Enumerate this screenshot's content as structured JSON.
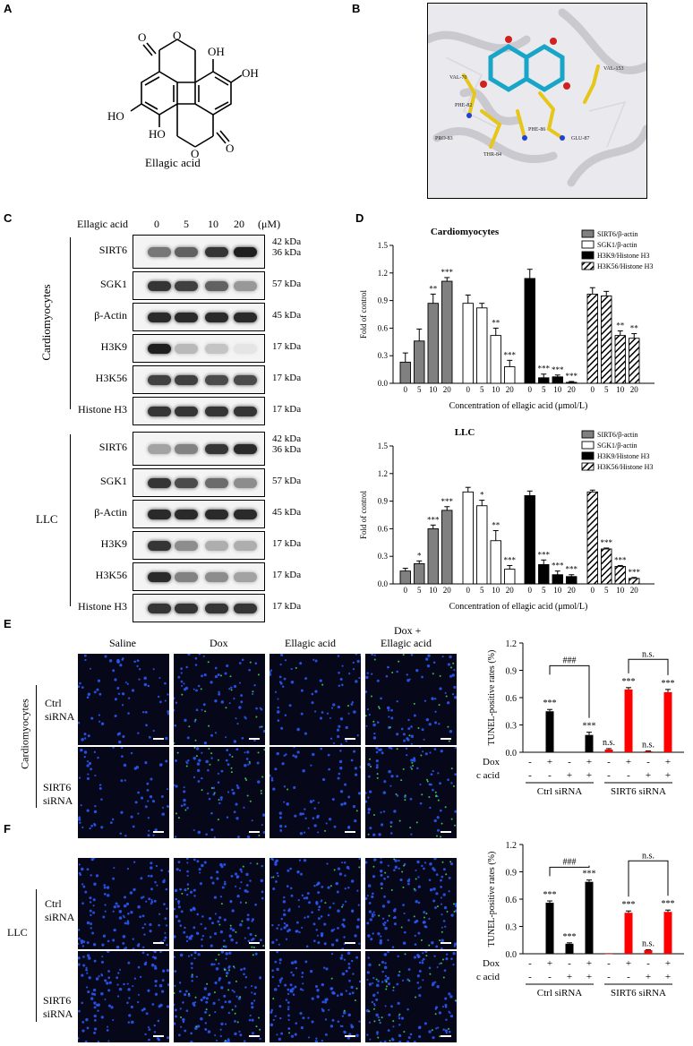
{
  "panels": {
    "A": "A",
    "B": "B",
    "C": "C",
    "D": "D",
    "E": "E",
    "F": "F"
  },
  "panel_a": {
    "molecule_name": "Ellagic acid",
    "oh": "OH",
    "ho": "HO"
  },
  "panel_b": {
    "residues": [
      "VAL-70",
      "PHE-82",
      "PRO-83",
      "THR-84",
      "PHE-86",
      "GLU-87",
      "VAL-153"
    ]
  },
  "panel_c": {
    "treatment_label": "Ellagic acid",
    "doses": [
      "0",
      "5",
      "10",
      "20"
    ],
    "unit": "(μM)",
    "group_labels": [
      "Cardiomyocytes",
      "LLC"
    ],
    "rows": [
      {
        "label": "SIRT6",
        "kda": "42 kDa",
        "kda2": "36 kDa"
      },
      {
        "label": "SGK1",
        "kda": "57 kDa"
      },
      {
        "label": "β-Actin",
        "kda": "45 kDa"
      },
      {
        "label": "H3K9",
        "kda": "17 kDa"
      },
      {
        "label": "H3K56",
        "kda": "17 kDa"
      },
      {
        "label": "Histone H3",
        "kda": "17 kDa"
      }
    ],
    "band_intensity_cardio": [
      [
        0.55,
        0.65,
        0.85,
        0.95
      ],
      [
        0.85,
        0.8,
        0.65,
        0.4
      ],
      [
        0.9,
        0.9,
        0.9,
        0.9
      ],
      [
        0.95,
        0.25,
        0.2,
        0.05
      ],
      [
        0.8,
        0.8,
        0.75,
        0.75
      ],
      [
        0.85,
        0.85,
        0.85,
        0.85
      ]
    ],
    "band_intensity_llc": [
      [
        0.35,
        0.5,
        0.85,
        0.9
      ],
      [
        0.85,
        0.75,
        0.6,
        0.45
      ],
      [
        0.9,
        0.9,
        0.9,
        0.9
      ],
      [
        0.85,
        0.45,
        0.3,
        0.3
      ],
      [
        0.9,
        0.5,
        0.45,
        0.35
      ],
      [
        0.85,
        0.85,
        0.85,
        0.85
      ]
    ]
  },
  "chart_data": [
    {
      "type": "bar",
      "title": "Cardiomyocytes",
      "xlabel": "Concentration of ellagic acid (μmol/L)",
      "ylabel": "Fold of control",
      "ylim": [
        0,
        1.5
      ],
      "yticks": [
        "0.0",
        "0.3",
        "0.6",
        "0.9",
        "1.2",
        "1.5"
      ],
      "categories": [
        "0",
        "5",
        "10",
        "20"
      ],
      "legend_position": "top-right",
      "series": [
        {
          "name": "SIRT6/β-actin",
          "values": [
            0.23,
            0.46,
            0.87,
            1.11
          ],
          "errors": [
            0.1,
            0.13,
            0.1,
            0.04
          ],
          "sig": [
            "",
            "",
            "**",
            "***"
          ]
        },
        {
          "name": "SGK1/β-actin",
          "values": [
            0.87,
            0.82,
            0.52,
            0.18
          ],
          "errors": [
            0.09,
            0.05,
            0.08,
            0.07
          ],
          "sig": [
            "",
            "",
            "**",
            "***"
          ]
        },
        {
          "name": "H3K9/Histone H3",
          "values": [
            1.14,
            0.06,
            0.07,
            0.01
          ],
          "errors": [
            0.1,
            0.04,
            0.02,
            0.01
          ],
          "sig": [
            "",
            "***",
            "***",
            "***"
          ]
        },
        {
          "name": "H3K56/Histone H3",
          "values": [
            0.97,
            0.95,
            0.52,
            0.49
          ],
          "errors": [
            0.07,
            0.05,
            0.05,
            0.05
          ],
          "sig": [
            "",
            "",
            "**",
            "**"
          ]
        }
      ]
    },
    {
      "type": "bar",
      "title": "LLC",
      "xlabel": "Concentration of ellagic acid (μmol/L)",
      "ylabel": "Fold of control",
      "ylim": [
        0,
        1.5
      ],
      "yticks": [
        "0.0",
        "0.3",
        "0.6",
        "0.9",
        "1.2",
        "1.5"
      ],
      "categories": [
        "0",
        "5",
        "10",
        "20"
      ],
      "legend_position": "top-right",
      "series": [
        {
          "name": "SIRT6/β-actin",
          "values": [
            0.14,
            0.22,
            0.6,
            0.8
          ],
          "errors": [
            0.03,
            0.03,
            0.04,
            0.04
          ],
          "sig": [
            "",
            "*",
            "***",
            "***"
          ]
        },
        {
          "name": "SGK1/β-actin",
          "values": [
            1.0,
            0.85,
            0.47,
            0.16
          ],
          "errors": [
            0.05,
            0.06,
            0.11,
            0.04
          ],
          "sig": [
            "",
            "*",
            "**",
            "***"
          ]
        },
        {
          "name": "H3K9/Histone H3",
          "values": [
            0.96,
            0.21,
            0.1,
            0.08
          ],
          "errors": [
            0.05,
            0.05,
            0.04,
            0.02
          ],
          "sig": [
            "",
            "***",
            "***",
            "***"
          ]
        },
        {
          "name": "H3K56/Histone H3",
          "values": [
            1.0,
            0.38,
            0.19,
            0.06
          ],
          "errors": [
            0.02,
            0.01,
            0.01,
            0.01
          ],
          "sig": [
            "",
            "***",
            "***",
            "***"
          ]
        }
      ]
    },
    {
      "type": "bar",
      "title": "Cardiomyocytes",
      "ylabel": "TUNEL-positive rates (%)",
      "ylim": [
        0,
        1.2
      ],
      "yticks": [
        "0.0",
        "0.3",
        "0.6",
        "0.9",
        "1.2"
      ],
      "values": [
        0.0,
        0.45,
        0.0,
        0.19,
        0.03,
        0.69,
        0.01,
        0.66
      ],
      "errors": [
        0,
        0.02,
        0,
        0.03,
        0.01,
        0.02,
        0.005,
        0.03
      ],
      "colors": [
        "#000000",
        "#000000",
        "#000000",
        "#000000",
        "#ff0000",
        "#ff0000",
        "#ff0000",
        "#ff0000"
      ],
      "sig": [
        "",
        "***",
        "",
        "***",
        "n.s.",
        "***",
        "n.s.",
        "***"
      ],
      "brackets": [
        "###",
        "n.s."
      ]
    },
    {
      "type": "bar",
      "title": "LLC",
      "ylabel": "TUNEL-positive rates (%)",
      "ylim": [
        0,
        1.2
      ],
      "yticks": [
        "0.0",
        "0.3",
        "0.6",
        "0.9",
        "1.2"
      ],
      "values": [
        0.0,
        0.56,
        0.11,
        0.79,
        0.0,
        0.45,
        0.04,
        0.46
      ],
      "errors": [
        0,
        0.02,
        0.01,
        0.02,
        0,
        0.02,
        0.005,
        0.02
      ],
      "colors": [
        "#000000",
        "#000000",
        "#000000",
        "#000000",
        "#ff0000",
        "#ff0000",
        "#ff0000",
        "#ff0000"
      ],
      "sig": [
        "",
        "***",
        "***",
        "***",
        "",
        "***",
        "n.s.",
        "***"
      ],
      "brackets": [
        "###",
        "n.s."
      ]
    }
  ],
  "tunel_table": {
    "row1_label": "Dox",
    "row2_label": "Ellagic acid",
    "row1": [
      "-",
      "+",
      "-",
      "+",
      "-",
      "+",
      "-",
      "+"
    ],
    "row2": [
      "-",
      "-",
      "+",
      "+",
      "-",
      "-",
      "+",
      "+"
    ],
    "group1": "Ctrl siRNA",
    "group2": "SIRT6 siRNA"
  },
  "panel_e": {
    "columns": [
      "Saline",
      "Dox",
      "Ellagic acid",
      "Dox +",
      "Ellagic acid"
    ],
    "side_label": "Cardiomyocytes",
    "row_labels": [
      [
        "Ctrl",
        "siRNA"
      ],
      [
        "SIRT6",
        "siRNA"
      ]
    ]
  },
  "panel_f": {
    "side_label": "LLC",
    "row_labels": [
      [
        "Ctrl",
        "siRNA"
      ],
      [
        "SIRT6",
        "siRNA"
      ]
    ]
  }
}
